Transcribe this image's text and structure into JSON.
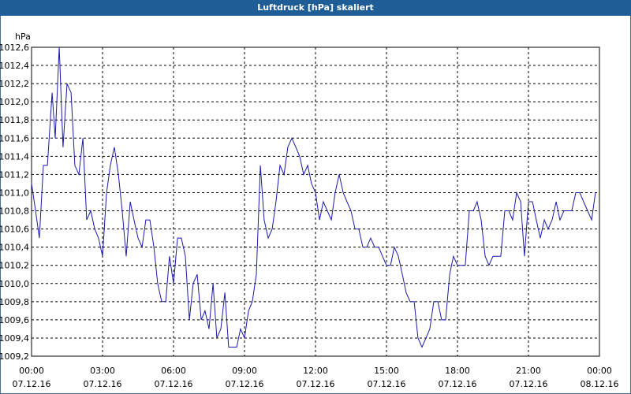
{
  "window": {
    "title": "Luftdruck [hPa] skaliert"
  },
  "colors": {
    "titlebar": "#1f5d97",
    "line": "#1a1aa8",
    "grid": "#000000"
  },
  "chart_data": {
    "type": "line",
    "title": "Luftdruck [hPa] skaliert",
    "ylabel": "hPa",
    "xlabel": "",
    "ylim": [
      1009.2,
      1012.6
    ],
    "xlim": [
      0,
      24
    ],
    "grid": true,
    "y_ticks": [
      "1012,6",
      "1012,4",
      "1012,2",
      "1012,0",
      "1011,8",
      "1011,6",
      "1011,4",
      "1011,2",
      "1011,0",
      "1010,8",
      "1010,6",
      "1010,4",
      "1010,2",
      "1010,0",
      "1009,8",
      "1009,6",
      "1009,4",
      "1009,2"
    ],
    "x_ticks": [
      {
        "time": "00:00",
        "date": "07.12.16"
      },
      {
        "time": "03:00",
        "date": "07.12.16"
      },
      {
        "time": "06:00",
        "date": "07.12.16"
      },
      {
        "time": "09:00",
        "date": "07.12.16"
      },
      {
        "time": "12:00",
        "date": "07.12.16"
      },
      {
        "time": "15:00",
        "date": "07.12.16"
      },
      {
        "time": "18:00",
        "date": "07.12.16"
      },
      {
        "time": "21:00",
        "date": "07.12.16"
      },
      {
        "time": "00:00",
        "date": "08.12.16"
      }
    ],
    "series": [
      {
        "values": [
          [
            0.0,
            1011.1
          ],
          [
            0.17,
            1010.8
          ],
          [
            0.33,
            1010.5
          ],
          [
            0.5,
            1011.3
          ],
          [
            0.67,
            1011.3
          ],
          [
            0.87,
            1012.1
          ],
          [
            1.0,
            1011.6
          ],
          [
            1.17,
            1012.6
          ],
          [
            1.33,
            1011.5
          ],
          [
            1.5,
            1012.2
          ],
          [
            1.67,
            1012.1
          ],
          [
            1.83,
            1011.3
          ],
          [
            2.0,
            1011.2
          ],
          [
            2.17,
            1011.6
          ],
          [
            2.33,
            1010.7
          ],
          [
            2.5,
            1010.8
          ],
          [
            2.67,
            1010.6
          ],
          [
            2.83,
            1010.5
          ],
          [
            3.0,
            1010.3
          ],
          [
            3.17,
            1011.0
          ],
          [
            3.33,
            1011.3
          ],
          [
            3.5,
            1011.5
          ],
          [
            3.67,
            1011.2
          ],
          [
            3.83,
            1010.8
          ],
          [
            4.0,
            1010.3
          ],
          [
            4.17,
            1010.9
          ],
          [
            4.33,
            1010.7
          ],
          [
            4.5,
            1010.5
          ],
          [
            4.67,
            1010.4
          ],
          [
            4.83,
            1010.7
          ],
          [
            5.0,
            1010.7
          ],
          [
            5.17,
            1010.4
          ],
          [
            5.33,
            1010.0
          ],
          [
            5.5,
            1009.8
          ],
          [
            5.67,
            1009.8
          ],
          [
            5.83,
            1010.3
          ],
          [
            6.0,
            1010.0
          ],
          [
            6.17,
            1010.5
          ],
          [
            6.33,
            1010.5
          ],
          [
            6.5,
            1010.3
          ],
          [
            6.67,
            1009.6
          ],
          [
            6.83,
            1010.0
          ],
          [
            7.0,
            1010.1
          ],
          [
            7.17,
            1009.6
          ],
          [
            7.33,
            1009.7
          ],
          [
            7.5,
            1009.5
          ],
          [
            7.67,
            1010.0
          ],
          [
            7.83,
            1009.4
          ],
          [
            8.0,
            1009.5
          ],
          [
            8.17,
            1009.9
          ],
          [
            8.33,
            1009.3
          ],
          [
            8.5,
            1009.3
          ],
          [
            8.67,
            1009.3
          ],
          [
            8.83,
            1009.5
          ],
          [
            9.0,
            1009.4
          ],
          [
            9.17,
            1009.7
          ],
          [
            9.33,
            1009.8
          ],
          [
            9.5,
            1010.1
          ],
          [
            9.67,
            1011.3
          ],
          [
            9.83,
            1010.7
          ],
          [
            10.0,
            1010.5
          ],
          [
            10.17,
            1010.6
          ],
          [
            10.33,
            1010.9
          ],
          [
            10.5,
            1011.3
          ],
          [
            10.67,
            1011.2
          ],
          [
            10.83,
            1011.5
          ],
          [
            11.0,
            1011.6
          ],
          [
            11.17,
            1011.5
          ],
          [
            11.33,
            1011.4
          ],
          [
            11.5,
            1011.2
          ],
          [
            11.67,
            1011.3
          ],
          [
            11.83,
            1011.1
          ],
          [
            12.0,
            1011.0
          ],
          [
            12.17,
            1010.7
          ],
          [
            12.33,
            1010.9
          ],
          [
            12.5,
            1010.8
          ],
          [
            12.67,
            1010.7
          ],
          [
            12.83,
            1011.0
          ],
          [
            13.0,
            1011.2
          ],
          [
            13.17,
            1011.0
          ],
          [
            13.33,
            1010.9
          ],
          [
            13.5,
            1010.8
          ],
          [
            13.67,
            1010.6
          ],
          [
            13.83,
            1010.6
          ],
          [
            14.0,
            1010.4
          ],
          [
            14.17,
            1010.4
          ],
          [
            14.33,
            1010.5
          ],
          [
            14.5,
            1010.4
          ],
          [
            14.67,
            1010.4
          ],
          [
            14.83,
            1010.3
          ],
          [
            15.0,
            1010.2
          ],
          [
            15.17,
            1010.2
          ],
          [
            15.33,
            1010.4
          ],
          [
            15.5,
            1010.3
          ],
          [
            15.67,
            1010.1
          ],
          [
            15.83,
            1009.9
          ],
          [
            16.0,
            1009.8
          ],
          [
            16.17,
            1009.8
          ],
          [
            16.33,
            1009.4
          ],
          [
            16.5,
            1009.3
          ],
          [
            16.67,
            1009.4
          ],
          [
            16.83,
            1009.5
          ],
          [
            17.0,
            1009.8
          ],
          [
            17.17,
            1009.8
          ],
          [
            17.33,
            1009.6
          ],
          [
            17.5,
            1009.6
          ],
          [
            17.67,
            1010.1
          ],
          [
            17.83,
            1010.3
          ],
          [
            18.0,
            1010.2
          ],
          [
            18.17,
            1010.2
          ],
          [
            18.33,
            1010.2
          ],
          [
            18.5,
            1010.8
          ],
          [
            18.67,
            1010.8
          ],
          [
            18.83,
            1010.9
          ],
          [
            19.0,
            1010.7
          ],
          [
            19.17,
            1010.3
          ],
          [
            19.33,
            1010.2
          ],
          [
            19.5,
            1010.3
          ],
          [
            19.67,
            1010.3
          ],
          [
            19.83,
            1010.3
          ],
          [
            20.0,
            1010.8
          ],
          [
            20.17,
            1010.8
          ],
          [
            20.33,
            1010.7
          ],
          [
            20.5,
            1011.0
          ],
          [
            20.67,
            1010.9
          ],
          [
            20.83,
            1010.3
          ],
          [
            21.0,
            1010.9
          ],
          [
            21.17,
            1010.9
          ],
          [
            21.33,
            1010.7
          ],
          [
            21.5,
            1010.5
          ],
          [
            21.67,
            1010.7
          ],
          [
            21.83,
            1010.6
          ],
          [
            22.0,
            1010.7
          ],
          [
            22.17,
            1010.9
          ],
          [
            22.33,
            1010.7
          ],
          [
            22.5,
            1010.8
          ],
          [
            22.67,
            1010.8
          ],
          [
            22.83,
            1010.8
          ],
          [
            23.0,
            1011.0
          ],
          [
            23.17,
            1011.0
          ],
          [
            23.33,
            1010.9
          ],
          [
            23.5,
            1010.8
          ],
          [
            23.67,
            1010.7
          ],
          [
            23.83,
            1011.0
          ]
        ]
      }
    ]
  }
}
